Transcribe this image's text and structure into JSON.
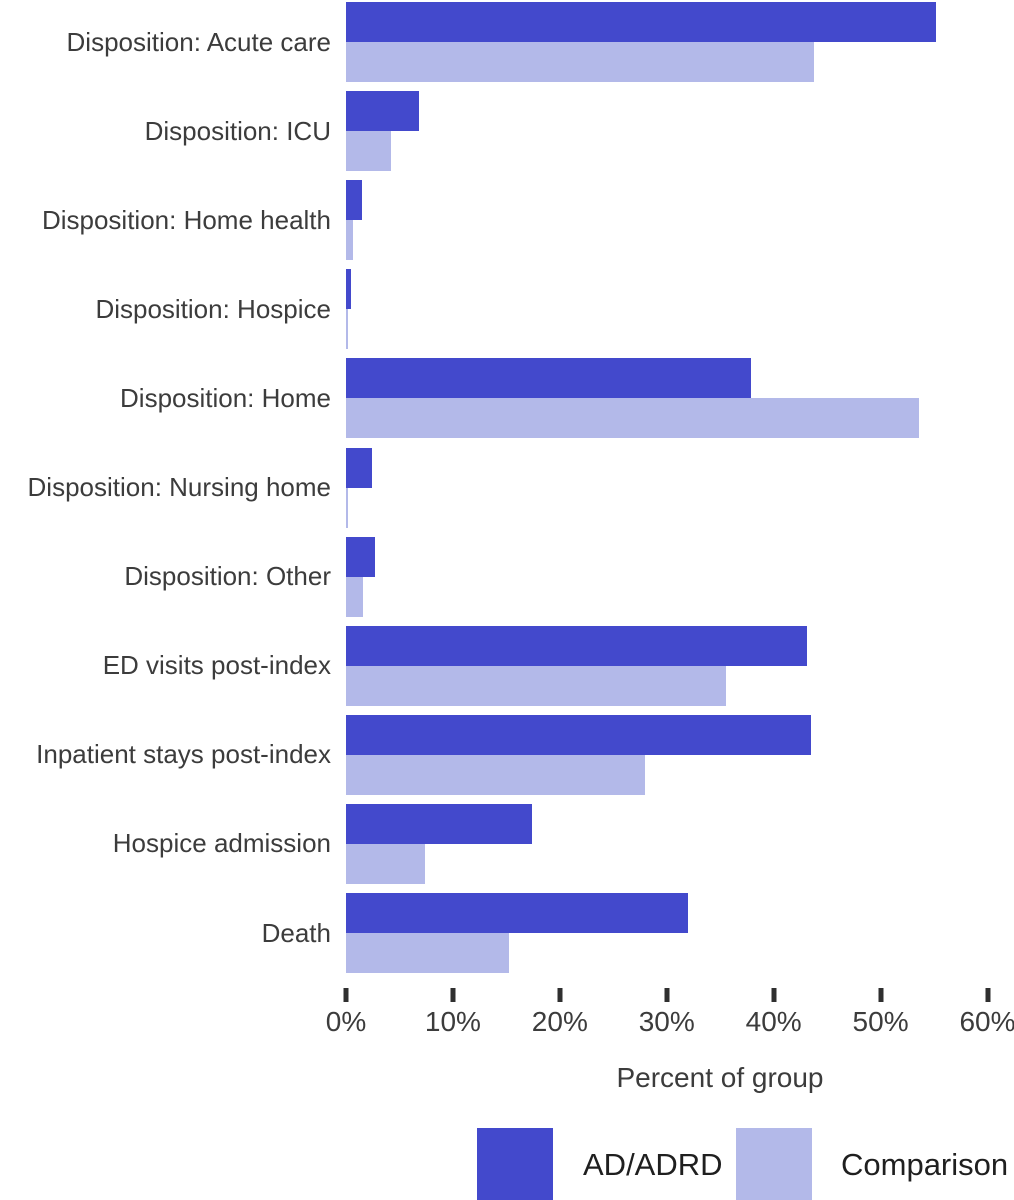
{
  "chart_data": {
    "type": "bar",
    "orientation": "horizontal",
    "title": "",
    "xlabel": "Percent of group",
    "ylabel": "",
    "xlim": [
      0,
      60
    ],
    "x_tick_labels": [
      "0%",
      "10%",
      "20%",
      "30%",
      "40%",
      "50%",
      "60%"
    ],
    "x_tick_values": [
      0,
      10,
      20,
      30,
      40,
      50,
      60
    ],
    "grid": false,
    "legend_position": "bottom",
    "categories": [
      "Disposition: Acute care",
      "Disposition: ICU",
      "Disposition: Home health",
      "Disposition: Hospice",
      "Disposition: Home",
      "Disposition: Nursing home",
      "Disposition: Other",
      "ED visits post-index",
      "Inpatient stays post-index",
      "Hospice admission",
      "Death"
    ],
    "series": [
      {
        "name": "AD/ADRD",
        "color": "#4349CC",
        "values": [
          55.2,
          6.8,
          1.5,
          0.45,
          37.9,
          2.4,
          2.7,
          43.1,
          43.5,
          17.4,
          32.0
        ]
      },
      {
        "name": "Comparison",
        "color": "#B3B9E9",
        "values": [
          43.8,
          4.2,
          0.65,
          0.2,
          53.6,
          0.15,
          1.6,
          35.5,
          28.0,
          7.4,
          15.2
        ]
      }
    ]
  }
}
